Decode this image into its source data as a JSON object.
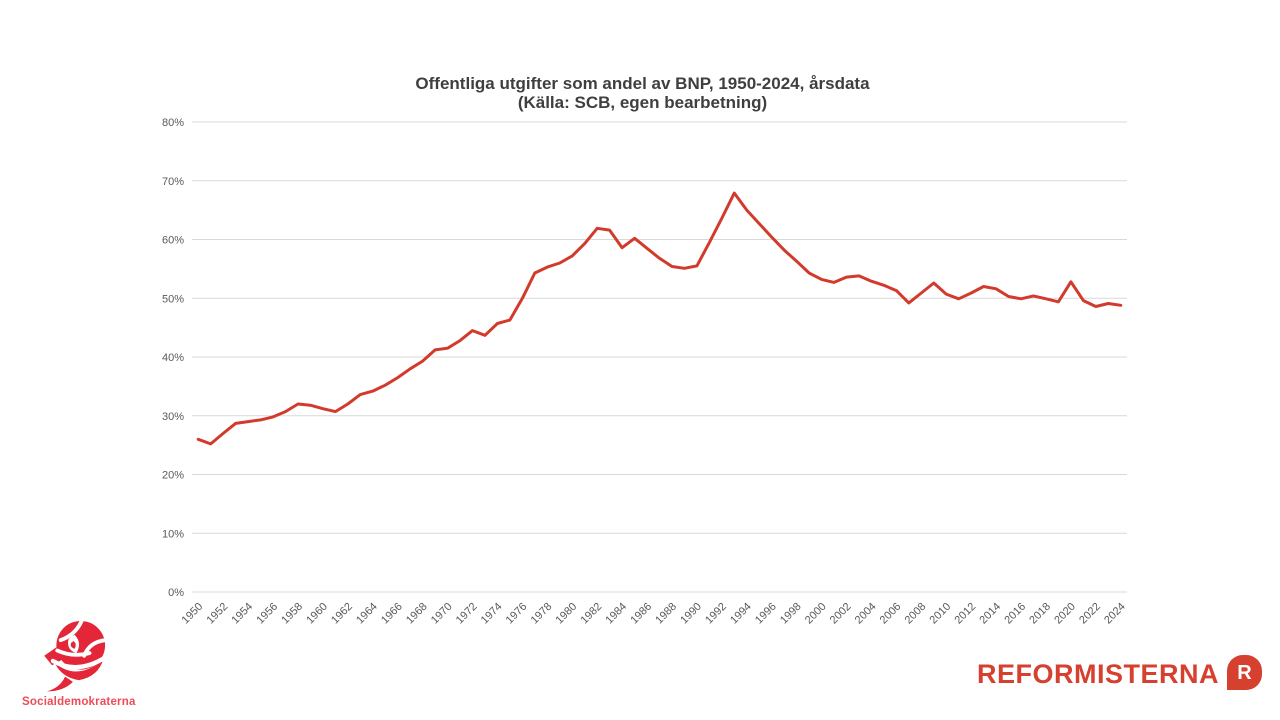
{
  "chart_data": {
    "type": "line",
    "title": "Offentliga utgifter som andel av BNP, 1950-2024, årsdata",
    "subtitle": "(Källa: SCB, egen bearbetning)",
    "x": [
      1950,
      1951,
      1952,
      1953,
      1954,
      1955,
      1956,
      1957,
      1958,
      1959,
      1960,
      1961,
      1962,
      1963,
      1964,
      1965,
      1966,
      1967,
      1968,
      1969,
      1970,
      1971,
      1972,
      1973,
      1974,
      1975,
      1976,
      1977,
      1978,
      1979,
      1980,
      1981,
      1982,
      1983,
      1984,
      1985,
      1986,
      1987,
      1988,
      1989,
      1990,
      1991,
      1992,
      1993,
      1994,
      1995,
      1996,
      1997,
      1998,
      1999,
      2000,
      2001,
      2002,
      2003,
      2004,
      2005,
      2006,
      2007,
      2008,
      2009,
      2010,
      2011,
      2012,
      2013,
      2014,
      2015,
      2016,
      2017,
      2018,
      2019,
      2020,
      2021,
      2022,
      2023,
      2024
    ],
    "series": [
      {
        "name": "Offentliga utgifter som andel av BNP",
        "color": "#d23a2c",
        "values": [
          26.0,
          25.2,
          27.0,
          28.7,
          29.0,
          29.3,
          29.8,
          30.7,
          32.0,
          31.8,
          31.2,
          30.7,
          32.0,
          33.6,
          34.2,
          35.2,
          36.5,
          38.0,
          39.3,
          41.2,
          41.5,
          42.8,
          44.5,
          43.7,
          45.7,
          46.3,
          50.0,
          54.3,
          55.3,
          56.0,
          57.2,
          59.3,
          61.9,
          61.6,
          58.6,
          60.2,
          58.5,
          56.8,
          55.4,
          55.1,
          55.5,
          59.5,
          63.6,
          67.9,
          65.0,
          62.7,
          60.4,
          58.2,
          56.3,
          54.3,
          53.2,
          52.7,
          53.6,
          53.8,
          52.9,
          52.2,
          51.3,
          49.2,
          50.9,
          52.6,
          50.7,
          49.9,
          50.9,
          52.0,
          51.6,
          50.3,
          49.9,
          50.4,
          49.9,
          49.4,
          52.8,
          49.6,
          48.6,
          49.1,
          48.8
        ]
      }
    ],
    "ylim": [
      0,
      80
    ],
    "ytick_step": 10,
    "ytick_suffix": "%",
    "xtick_every": 2,
    "grid": true,
    "legend_position": "none"
  },
  "colors": {
    "line": "#d23a2c",
    "gridline": "#d9d9d9",
    "axis_text": "#595959",
    "title_text": "#3f3f3f",
    "sd_rose": "#e32638",
    "sd_text": "#ef4b56",
    "reform_red": "#d6402f"
  },
  "footer": {
    "left_logo": {
      "label": "Socialdemokraterna"
    },
    "right_logo": {
      "label": "REFORMISTERNA",
      "badge_letter": "R"
    }
  }
}
